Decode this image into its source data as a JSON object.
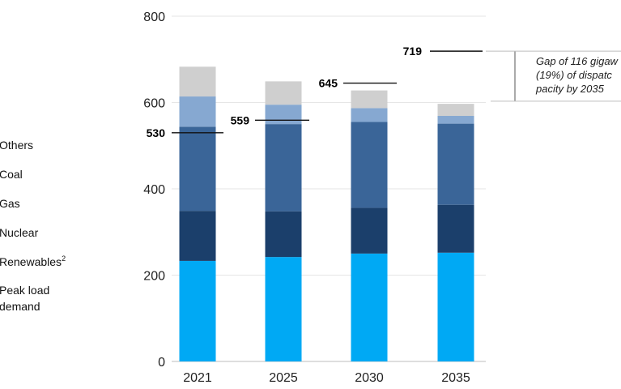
{
  "chart_data": {
    "type": "bar",
    "stacked": true,
    "categories": [
      "2021",
      "2025",
      "2030",
      "2035"
    ],
    "series": [
      {
        "name": "Renewables",
        "superscript": "2",
        "color": "#00a9f4",
        "values": [
          233,
          242,
          250,
          252
        ]
      },
      {
        "name": "Nuclear",
        "color": "#1b3f6b",
        "values": [
          116,
          106,
          106,
          111
        ]
      },
      {
        "name": "Gas",
        "color": "#3a6598",
        "values": [
          195,
          202,
          199,
          188
        ]
      },
      {
        "name": "Coal",
        "color": "#86a8d1",
        "values": [
          70,
          45,
          32,
          18
        ]
      },
      {
        "name": "Others",
        "color": "#cfcfcf",
        "values": [
          69,
          54,
          41,
          28
        ]
      }
    ],
    "legend_lines": [
      [
        "Others"
      ],
      [
        "Coal"
      ],
      [
        "Gas"
      ],
      [
        "Nuclear"
      ],
      [
        "Renewables"
      ],
      [
        "Peak load",
        "demand"
      ]
    ],
    "peak_load_demand": [
      530,
      559,
      645,
      719
    ],
    "ylim": [
      0,
      800
    ],
    "yticks": [
      0,
      200,
      400,
      600,
      800
    ],
    "grid": true,
    "annotation": {
      "lines": [
        "Gap of 116 gigaw",
        "(19%) of dispatc",
        "pacity by 2035"
      ]
    }
  }
}
